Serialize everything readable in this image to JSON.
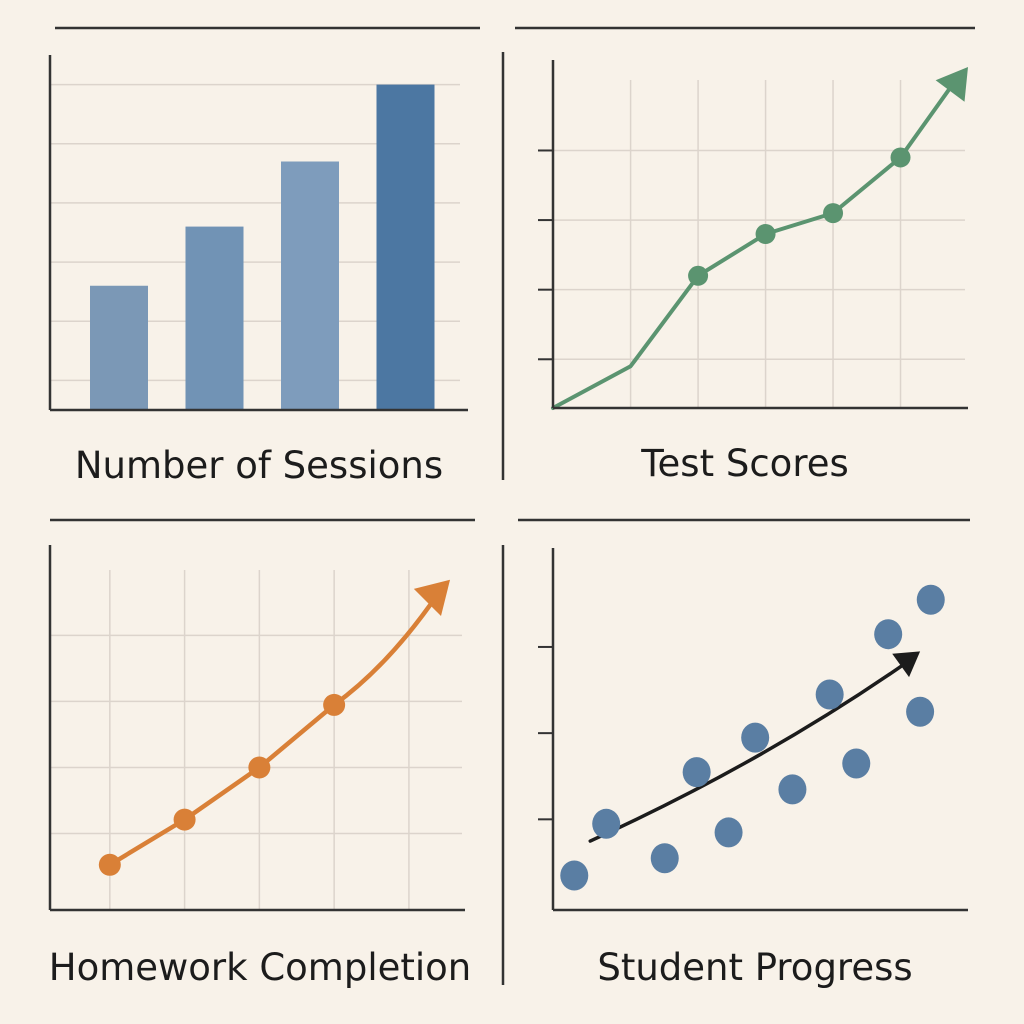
{
  "chart_data": [
    {
      "type": "bar",
      "title": "Number of Sessions",
      "categories": [
        "",
        "",
        "",
        ""
      ],
      "values": [
        2.1,
        3.1,
        4.2,
        5.5
      ],
      "ylim": [
        0,
        6
      ],
      "grid": true,
      "colors": [
        "#7b98b6",
        "#7193b5",
        "#7e9cbc",
        "#4c77a2"
      ]
    },
    {
      "type": "line",
      "title": "Test Scores",
      "x": [
        0,
        1,
        2,
        3,
        4
      ],
      "y": [
        1.4,
        2.7,
        3.3,
        3.6,
        4.4
      ],
      "marker_indices": [
        1,
        2,
        3,
        4
      ],
      "trend_end": [
        5.0,
        5.7
      ],
      "xlim": [
        -1.15,
        5.0
      ],
      "ylim": [
        0.8,
        5.8
      ],
      "grid": true,
      "color": "#5b9470"
    },
    {
      "type": "line",
      "title": "Homework Completion",
      "x": [
        0,
        1,
        2,
        3
      ],
      "y": [
        0.65,
        1.3,
        2.05,
        2.95
      ],
      "marker_indices": [
        0,
        1,
        2,
        3
      ],
      "trend_end": [
        4.55,
        4.75
      ],
      "xlim": [
        -0.8,
        4.75
      ],
      "ylim": [
        0,
        5.25
      ],
      "grid": true,
      "color": "#d98037"
    },
    {
      "type": "scatter",
      "title": "Student Progress",
      "x": [
        0.1,
        0.7,
        1.8,
        2.4,
        3.0,
        3.5,
        4.2,
        4.9,
        5.4,
        6.0,
        6.6,
        6.8
      ],
      "y": [
        0.4,
        1.0,
        0.6,
        1.6,
        0.9,
        2.0,
        1.4,
        2.5,
        1.7,
        3.2,
        2.3,
        3.6
      ],
      "trend": [
        [
          0.4,
          0.8
        ],
        [
          6.6,
          3.0
        ]
      ],
      "xlim": [
        -0.3,
        7.5
      ],
      "ylim": [
        0,
        4.2
      ],
      "grid": false,
      "color": "#5a7ea3"
    }
  ]
}
